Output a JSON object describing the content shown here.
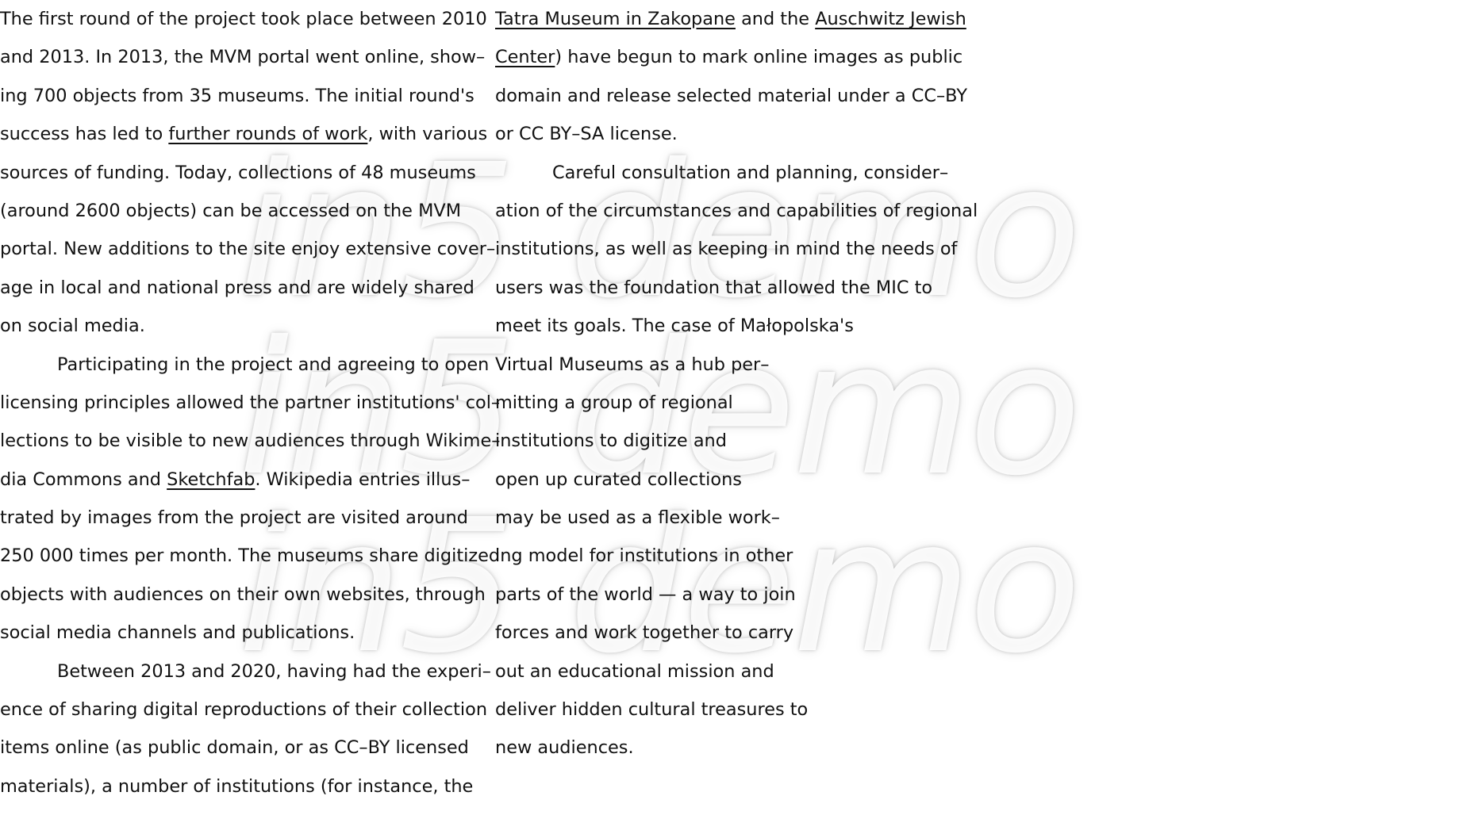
{
  "watermark": {
    "lines": [
      "in5 demo",
      "in5 demo",
      "in5 demo"
    ]
  },
  "left_column": {
    "lines": [
      {
        "text": "The first round of the project took place between 2010"
      },
      {
        "text": "and 2013. In 2013, the MVM portal went online, show–"
      },
      {
        "text": "ing 700 objects from 35 museums. The initial round's"
      },
      {
        "pre": "success has led to ",
        "link": "further rounds of work",
        "post": ", with various"
      },
      {
        "text": "sources of funding. Today, collections of 48 museums"
      },
      {
        "text": "(around 2600 objects) can be accessed on the MVM"
      },
      {
        "text": "portal. New additions to the site enjoy extensive cover–"
      },
      {
        "text": "age in local and national press and are widely shared"
      },
      {
        "text": "on social media."
      },
      {
        "text": "Participating in the project and agreeing to open",
        "indent": true
      },
      {
        "text": "licensing principles allowed the partner institutions' col–"
      },
      {
        "text": "lections to be visible to new audiences through Wikime–"
      },
      {
        "pre": "dia Commons and ",
        "link": "Sketchfab",
        "post": ". Wikipedia entries illus–"
      },
      {
        "text": "trated by images from the project are visited around"
      },
      {
        "text": "250 000 times per month. The museums share digitized"
      },
      {
        "text": "objects with audiences on their own websites, through"
      },
      {
        "text": "social media channels and publications."
      },
      {
        "text": "Between 2013 and 2020, having had the experi–",
        "indent": true
      },
      {
        "text": "ence of sharing digital reproductions of their collection"
      },
      {
        "text": "items online (as public domain, or as CC–BY licensed"
      },
      {
        "text": "materials), a number of institutions (for instance, the"
      }
    ]
  },
  "right_column": {
    "lines": [
      {
        "pre": "",
        "link": "Tatra Museum in Zakopane",
        "mid": " and the ",
        "link2": "Auschwitz Jewish ",
        "post": ""
      },
      {
        "pre": "",
        "link": "Center",
        "post": ") have begun to mark online images as public"
      },
      {
        "text": "domain and release selected material under a CC–BY"
      },
      {
        "text": "or CC BY–SA license."
      },
      {
        "text": "Careful consultation and planning, consider–",
        "indent": true
      },
      {
        "text": "ation of the circumstances and capabilities of regional"
      },
      {
        "text": "institutions, as well as keeping in mind the needs of"
      },
      {
        "text": "users was the foundation that allowed the MIC to"
      },
      {
        "text": "meet its goals. The case of Małopolska's"
      },
      {
        "text": "Virtual Museums as a hub per–"
      },
      {
        "text": "mitting a group of regional"
      },
      {
        "text": "institutions to digitize and"
      },
      {
        "text": "open up curated collections"
      },
      {
        "text": "may be used as a flexible work–"
      },
      {
        "text": "ing model for institutions in other"
      },
      {
        "text": "parts of the world — a way to join"
      },
      {
        "text": "forces and work together to carry"
      },
      {
        "text": "out an educational mission and"
      },
      {
        "text": "deliver hidden cultural treasures to"
      },
      {
        "text": "new audiences."
      }
    ]
  }
}
